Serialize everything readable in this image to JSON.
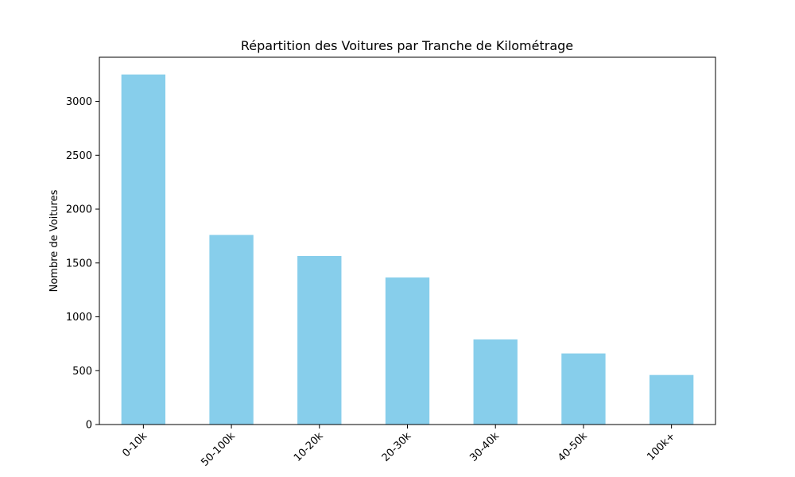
{
  "chart_data": {
    "type": "bar",
    "title": "Répartition des Voitures par Tranche de Kilométrage",
    "xlabel": "",
    "ylabel": "Nombre de Voitures",
    "categories": [
      "0-10k",
      "50-100k",
      "10-20k",
      "20-30k",
      "30-40k",
      "40-50k",
      "100k+"
    ],
    "values": [
      3250,
      1760,
      1565,
      1365,
      790,
      660,
      460
    ],
    "ylim": [
      0,
      3410
    ],
    "yticks": [
      0,
      500,
      1000,
      1500,
      2000,
      2500,
      3000
    ],
    "grid": false,
    "bar_color": "#87CEEB"
  }
}
